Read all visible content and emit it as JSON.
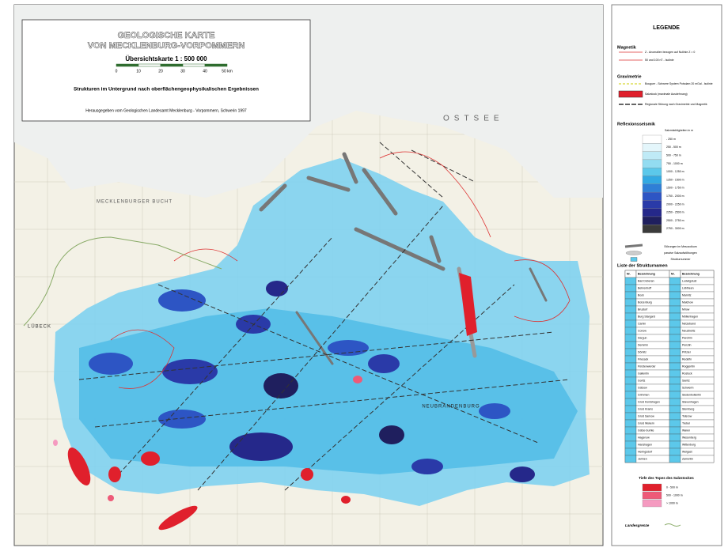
{
  "header": {
    "title_line1": "GEOLOGISCHE KARTE",
    "title_line2": "VON MECKLENBURG-VORPOMMERN",
    "subtitle": "Übersichtskarte 1 : 500 000",
    "scale_ticks": [
      "0",
      "10",
      "20",
      "30",
      "40",
      "50 km"
    ],
    "description": "Strukturen im Untergrund nach oberflächengeophysikalischen Ergebnissen",
    "publisher": "Herausgegeben vom Geologischen Landesamt Mecklenburg - Vorpommern, Schwerin 1997"
  },
  "map_labels": [
    "OSTSEE",
    "MECKLENBURGER BUCHT",
    "LÜBECK",
    "NEUBRANDENBURG"
  ],
  "legend": {
    "title": "LEGENDE",
    "magnetik": {
      "heading": "Magnetik",
      "items": [
        "Z - Anomalien bezogen auf Nullinie Z = 0",
        "50 und 100 nT - Isolinie"
      ]
    },
    "gravimetrie": {
      "heading": "Gravimetrie",
      "items": [
        "Bouguer - Schwere System Potsdam 20 mGal - Isolinie",
        "Salzstock (maximale Ausdehnung)",
        "Regionale Störung nach Gravimetrie und Magnetik"
      ]
    },
    "seismik": {
      "heading": "Reflexionsseismik",
      "subheading": "Salzmächtigkeiten in m",
      "classes": [
        {
          "label": "- 250 m",
          "color": "#ffffff"
        },
        {
          "label": "250 - 500 m",
          "color": "#e4f6fb"
        },
        {
          "label": "500 - 750 m",
          "color": "#bfeaf6"
        },
        {
          "label": "750 - 1000 m",
          "color": "#93dcf1"
        },
        {
          "label": "1000 - 1250 m",
          "color": "#5cc8ea"
        },
        {
          "label": "1250 - 1500 m",
          "color": "#33a9e2"
        },
        {
          "label": "1500 - 1750 m",
          "color": "#2f7fd6"
        },
        {
          "label": "1750 - 2000 m",
          "color": "#2d55c4"
        },
        {
          "label": "2000 - 2250 m",
          "color": "#2a3aa8"
        },
        {
          "label": "2250 - 2500 m",
          "color": "#25288a"
        },
        {
          "label": "2500 - 2750 m",
          "color": "#1f1f5e"
        },
        {
          "label": "2750 - 3000 m",
          "color": "#3a3a3a"
        }
      ],
      "items": [
        "Störungen im Mesozoikum",
        "passive Salzaufwölbungen",
        "Strukturnummer"
      ]
    },
    "structures": {
      "heading": "Liste der Strukturnamen",
      "columns": [
        "Nr.",
        "Bezeichnung",
        "Nr.",
        "Bezeichnung"
      ],
      "left": [
        "Bad Doberan",
        "Behrenhoff",
        "Bock",
        "Boizenburg",
        "Brustorf",
        "Burg Stargard",
        "Camin",
        "Conow",
        "Dargun",
        "Demmin",
        "Dömitz",
        "Friesack",
        "Fürstenwerder",
        "Gallentin",
        "Goritz",
        "Gülzow",
        "Grimmen",
        "Groß Kordshagen",
        "Groß Krams",
        "Groß Sarnow",
        "Groß Wokern",
        "Gülze-Sumte",
        "Hagenow",
        "Hanshagen",
        "Heringsdorf",
        "Jarmen"
      ],
      "right": [
        "Ludwigslust",
        "Lübtheen",
        "Marnitz",
        "Malchow",
        "Mirow",
        "Möllenhagen",
        "Netzeband",
        "Neustrelitz",
        "Parchim",
        "Penzlin",
        "Pritzier",
        "Redefin",
        "Roggentin",
        "Rostock",
        "Sanitz",
        "Schwerin",
        "Siedenbollentin",
        "Stavenhagen",
        "Sternberg",
        "Teterow",
        "Trebel",
        "Waren",
        "Wesenberg",
        "Wittenburg",
        "Wolgast",
        "Zarrentin"
      ]
    },
    "salt": {
      "heading": "Tiefe des Topes des Salzstockes",
      "classes": [
        {
          "label": "0 - 500 m",
          "color": "#e0202c"
        },
        {
          "label": "500 - 1000 m",
          "color": "#ee5a78"
        },
        {
          "label": "> 1000 m",
          "color": "#f59ac0"
        }
      ]
    },
    "border": "Landesgrenze"
  }
}
